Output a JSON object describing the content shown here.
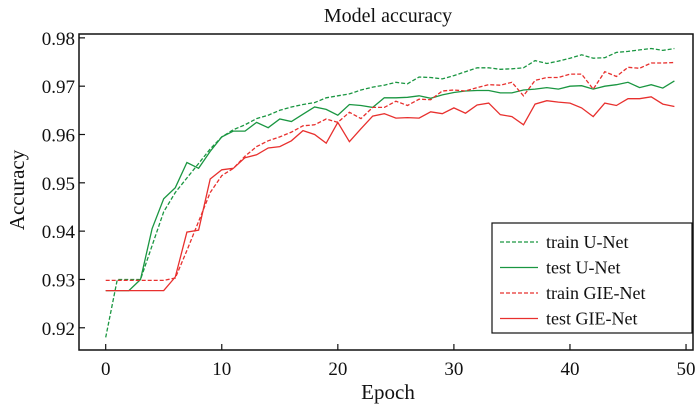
{
  "chart_data": {
    "type": "line",
    "title": "Model accuracy",
    "xlabel": "Epoch",
    "ylabel": "Accuracy",
    "xlim": [
      -2.3,
      50.6
    ],
    "ylim": [
      0.9154,
      0.9808
    ],
    "xticks": [
      "0",
      "10",
      "20",
      "30",
      "40",
      "50"
    ],
    "yticks": [
      "0.92",
      "0.93",
      "0.94",
      "0.95",
      "0.96",
      "0.97",
      "0.98"
    ],
    "grid": false,
    "legend_position": "lower-right",
    "x": [
      0,
      1,
      2,
      3,
      4,
      5,
      6,
      7,
      8,
      9,
      10,
      11,
      12,
      13,
      14,
      15,
      16,
      17,
      18,
      19,
      20,
      21,
      22,
      23,
      24,
      25,
      26,
      27,
      28,
      29,
      30,
      31,
      32,
      33,
      34,
      35,
      36,
      37,
      38,
      39,
      40,
      41,
      42,
      43,
      44,
      45,
      46,
      47,
      48,
      49
    ],
    "series": [
      {
        "name": "train U-Net",
        "color": "#1a9641",
        "dash": true,
        "values": [
          0.918,
          0.93,
          0.93,
          0.93,
          0.937,
          0.944,
          0.948,
          0.951,
          0.954,
          0.957,
          0.9595,
          0.961,
          0.962,
          0.9633,
          0.964,
          0.965,
          0.9657,
          0.9662,
          0.9666,
          0.9676,
          0.968,
          0.9684,
          0.9692,
          0.9698,
          0.9702,
          0.9708,
          0.9705,
          0.9719,
          0.9718,
          0.9715,
          0.9722,
          0.973,
          0.9738,
          0.9738,
          0.9735,
          0.9736,
          0.9738,
          0.9753,
          0.9747,
          0.9752,
          0.9758,
          0.9765,
          0.9758,
          0.9759,
          0.977,
          0.9772,
          0.9775,
          0.9778,
          0.9774,
          0.9778
        ]
      },
      {
        "name": "test U-Net",
        "color": "#1a9641",
        "dash": false,
        "values": [
          0.9277,
          0.9277,
          0.9277,
          0.93,
          0.9405,
          0.9467,
          0.949,
          0.9542,
          0.953,
          0.9565,
          0.9595,
          0.9607,
          0.9607,
          0.9625,
          0.9614,
          0.9632,
          0.9627,
          0.9642,
          0.9657,
          0.9652,
          0.964,
          0.9662,
          0.966,
          0.9656,
          0.9676,
          0.9676,
          0.9677,
          0.968,
          0.9675,
          0.9682,
          0.9687,
          0.969,
          0.9691,
          0.9691,
          0.9686,
          0.9686,
          0.9692,
          0.9694,
          0.9697,
          0.9694,
          0.97,
          0.9701,
          0.9694,
          0.97,
          0.9703,
          0.9708,
          0.9697,
          0.9703,
          0.9696,
          0.9711
        ]
      },
      {
        "name": "train GIE-Net",
        "color": "#e8302e",
        "dash": true,
        "values": [
          0.9298,
          0.9298,
          0.9298,
          0.9298,
          0.9298,
          0.9298,
          0.9303,
          0.936,
          0.942,
          0.948,
          0.9515,
          0.953,
          0.9555,
          0.9575,
          0.9587,
          0.9595,
          0.9605,
          0.9618,
          0.962,
          0.9632,
          0.9625,
          0.9646,
          0.9633,
          0.9656,
          0.9656,
          0.9669,
          0.966,
          0.9673,
          0.9672,
          0.969,
          0.9692,
          0.969,
          0.9697,
          0.9703,
          0.9702,
          0.9708,
          0.968,
          0.9712,
          0.9718,
          0.9718,
          0.9725,
          0.9725,
          0.9694,
          0.973,
          0.972,
          0.9739,
          0.9737,
          0.9748,
          0.9748,
          0.9749
        ]
      },
      {
        "name": "test GIE-Net",
        "color": "#e8302e",
        "dash": false,
        "values": [
          0.9277,
          0.9277,
          0.9277,
          0.9277,
          0.9277,
          0.9277,
          0.9305,
          0.9398,
          0.9402,
          0.9508,
          0.9527,
          0.953,
          0.9552,
          0.9558,
          0.9572,
          0.9575,
          0.9587,
          0.9608,
          0.96,
          0.9582,
          0.9625,
          0.9585,
          0.9612,
          0.9638,
          0.9643,
          0.9634,
          0.9635,
          0.9634,
          0.9647,
          0.9643,
          0.9655,
          0.9644,
          0.9661,
          0.9665,
          0.9641,
          0.9637,
          0.962,
          0.9663,
          0.967,
          0.9667,
          0.9665,
          0.9655,
          0.9637,
          0.9665,
          0.966,
          0.9674,
          0.9674,
          0.9678,
          0.9663,
          0.9658
        ]
      }
    ]
  }
}
